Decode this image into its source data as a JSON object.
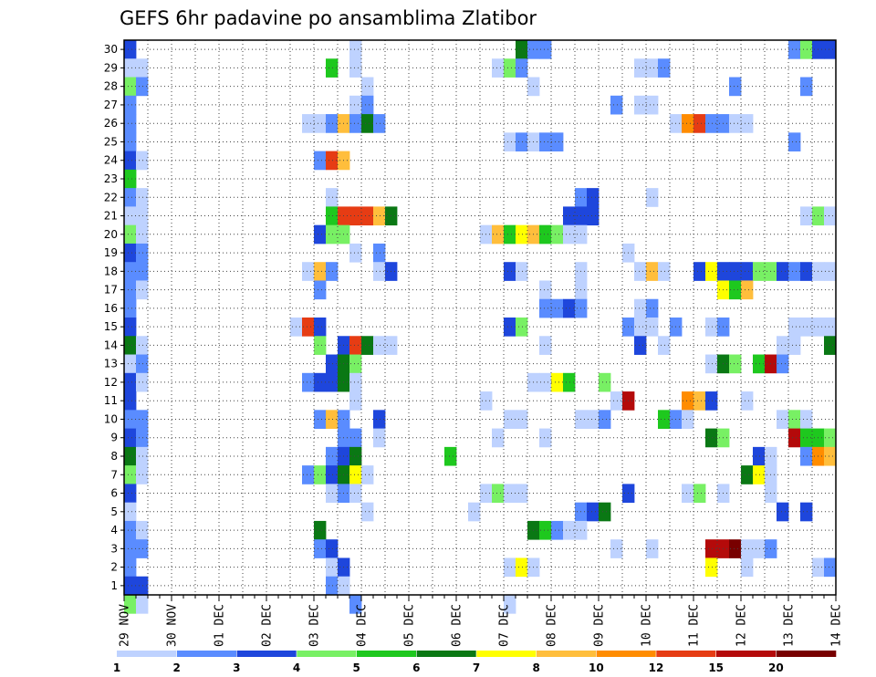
{
  "chart_data": {
    "type": "heatmap",
    "title": "GEFS 6hr padavine po ansamblima Zlatibor",
    "xlabel": "",
    "ylabel": "",
    "x_tick_labels": [
      "29 NOV",
      "30 NOV",
      "01 DEC",
      "02 DEC",
      "03 DEC",
      "04 DEC",
      "05 DEC",
      "06 DEC",
      "07 DEC",
      "08 DEC",
      "09 DEC",
      "10 DEC",
      "11 DEC",
      "12 DEC",
      "13 DEC",
      "14 DEC"
    ],
    "y_tick_labels": [
      "1",
      "2",
      "3",
      "4",
      "5",
      "6",
      "7",
      "8",
      "9",
      "10",
      "11",
      "12",
      "13",
      "14",
      "15",
      "16",
      "17",
      "18",
      "19",
      "20",
      "21",
      "22",
      "23",
      "24",
      "25",
      "26",
      "27",
      "28",
      "29",
      "30"
    ],
    "xlim_days": [
      0,
      15
    ],
    "ylim": [
      0.5,
      30.5
    ],
    "step_hours": 6,
    "grid": "dotted",
    "colorbar": {
      "bounds": [
        "1",
        "2",
        "3",
        "4",
        "5",
        "6",
        "7",
        "8",
        "10",
        "12",
        "15",
        "20"
      ],
      "colors": [
        "#bed2ff",
        "#5a8cff",
        "#1e46dc",
        "#78f064",
        "#1ec81e",
        "#0a7814",
        "#ffff00",
        "#ffbe3c",
        "#ff8c00",
        "#e63c14",
        "#b40a0a",
        "#780000"
      ]
    },
    "colorbar_labels": [
      {
        "text": "1",
        "pos": 0
      },
      {
        "text": "2",
        "pos": 1
      },
      {
        "text": "3",
        "pos": 2
      },
      {
        "text": "4",
        "pos": 3
      },
      {
        "text": "5",
        "pos": 4
      },
      {
        "text": "6",
        "pos": 5
      },
      {
        "text": "7",
        "pos": 6
      },
      {
        "text": "8",
        "pos": 7
      },
      {
        "text": "10",
        "pos": 8
      },
      {
        "text": "12",
        "pos": 9
      },
      {
        "text": "15",
        "pos": 10
      },
      {
        "text": "20",
        "pos": 11
      }
    ],
    "cells": [
      [
        30,
        0.0,
        3
      ],
      [
        30,
        4.75,
        1
      ],
      [
        30,
        8.25,
        6
      ],
      [
        30,
        8.5,
        2
      ],
      [
        30,
        8.75,
        2
      ],
      [
        30,
        14.0,
        2
      ],
      [
        30,
        14.25,
        4
      ],
      [
        30,
        14.5,
        3
      ],
      [
        30,
        14.75,
        3
      ],
      [
        29,
        0.0,
        1
      ],
      [
        29,
        0.25,
        1
      ],
      [
        29,
        4.25,
        5
      ],
      [
        29,
        4.75,
        1
      ],
      [
        29,
        7.75,
        1
      ],
      [
        29,
        8.0,
        4
      ],
      [
        29,
        8.25,
        2
      ],
      [
        29,
        10.75,
        1
      ],
      [
        29,
        11.0,
        1
      ],
      [
        29,
        11.25,
        2
      ],
      [
        28,
        0.0,
        4
      ],
      [
        28,
        0.25,
        2
      ],
      [
        28,
        5.0,
        1
      ],
      [
        28,
        8.5,
        1
      ],
      [
        28,
        12.75,
        2
      ],
      [
        28,
        14.25,
        2
      ],
      [
        27,
        0.0,
        2
      ],
      [
        27,
        4.75,
        1
      ],
      [
        27,
        5.0,
        2
      ],
      [
        27,
        10.25,
        2
      ],
      [
        27,
        10.75,
        1
      ],
      [
        27,
        11.0,
        1
      ],
      [
        26,
        0.0,
        2
      ],
      [
        26,
        3.75,
        1
      ],
      [
        26,
        4.0,
        1
      ],
      [
        26,
        4.25,
        2
      ],
      [
        26,
        4.5,
        8
      ],
      [
        26,
        4.75,
        2
      ],
      [
        26,
        5.0,
        6
      ],
      [
        26,
        5.25,
        2
      ],
      [
        26,
        11.5,
        1
      ],
      [
        26,
        11.75,
        9
      ],
      [
        26,
        12.0,
        10
      ],
      [
        26,
        12.25,
        2
      ],
      [
        26,
        12.5,
        2
      ],
      [
        26,
        12.75,
        1
      ],
      [
        26,
        13.0,
        1
      ],
      [
        25,
        0.0,
        2
      ],
      [
        25,
        8.0,
        1
      ],
      [
        25,
        8.25,
        2
      ],
      [
        25,
        8.5,
        1
      ],
      [
        25,
        8.75,
        2
      ],
      [
        25,
        9.0,
        2
      ],
      [
        25,
        14.0,
        2
      ],
      [
        24,
        0.0,
        3
      ],
      [
        24,
        0.25,
        1
      ],
      [
        24,
        4.0,
        2
      ],
      [
        24,
        4.25,
        10
      ],
      [
        24,
        4.5,
        8
      ],
      [
        23,
        0.0,
        5
      ],
      [
        22,
        0.0,
        2
      ],
      [
        22,
        0.25,
        1
      ],
      [
        22,
        4.25,
        1
      ],
      [
        22,
        9.5,
        2
      ],
      [
        22,
        9.75,
        3
      ],
      [
        22,
        11.0,
        1
      ],
      [
        21,
        0.0,
        1
      ],
      [
        21,
        0.25,
        1
      ],
      [
        21,
        4.25,
        5
      ],
      [
        21,
        4.5,
        10
      ],
      [
        21,
        4.75,
        10
      ],
      [
        21,
        5.0,
        10
      ],
      [
        21,
        5.25,
        8
      ],
      [
        21,
        5.5,
        6
      ],
      [
        21,
        9.25,
        3
      ],
      [
        21,
        9.5,
        3
      ],
      [
        21,
        9.75,
        3
      ],
      [
        21,
        14.25,
        1
      ],
      [
        21,
        14.5,
        4
      ],
      [
        21,
        14.75,
        1
      ],
      [
        20,
        0.0,
        4
      ],
      [
        20,
        0.25,
        1
      ],
      [
        20,
        4.0,
        3
      ],
      [
        20,
        4.25,
        4
      ],
      [
        20,
        4.5,
        4
      ],
      [
        20,
        7.5,
        1
      ],
      [
        20,
        7.75,
        8
      ],
      [
        20,
        8.0,
        5
      ],
      [
        20,
        8.25,
        7
      ],
      [
        20,
        8.5,
        8
      ],
      [
        20,
        8.75,
        5
      ],
      [
        20,
        9.0,
        4
      ],
      [
        20,
        9.25,
        1
      ],
      [
        20,
        9.5,
        1
      ],
      [
        19,
        0.0,
        3
      ],
      [
        19,
        0.25,
        2
      ],
      [
        19,
        4.75,
        1
      ],
      [
        19,
        5.25,
        2
      ],
      [
        19,
        10.5,
        1
      ],
      [
        18,
        0.0,
        2
      ],
      [
        18,
        0.25,
        2
      ],
      [
        18,
        3.75,
        1
      ],
      [
        18,
        4.0,
        8
      ],
      [
        18,
        4.25,
        2
      ],
      [
        18,
        5.25,
        1
      ],
      [
        18,
        5.5,
        3
      ],
      [
        18,
        8.0,
        3
      ],
      [
        18,
        8.25,
        1
      ],
      [
        18,
        9.5,
        1
      ],
      [
        18,
        10.75,
        1
      ],
      [
        18,
        11.0,
        8
      ],
      [
        18,
        11.25,
        1
      ],
      [
        18,
        12.0,
        3
      ],
      [
        18,
        12.25,
        7
      ],
      [
        18,
        12.5,
        3
      ],
      [
        18,
        12.75,
        3
      ],
      [
        18,
        13.0,
        3
      ],
      [
        18,
        13.25,
        4
      ],
      [
        18,
        13.5,
        4
      ],
      [
        18,
        13.75,
        3
      ],
      [
        18,
        14.0,
        2
      ],
      [
        18,
        14.25,
        3
      ],
      [
        18,
        14.5,
        1
      ],
      [
        18,
        14.75,
        1
      ],
      [
        17,
        0.0,
        2
      ],
      [
        17,
        0.25,
        1
      ],
      [
        17,
        4.0,
        2
      ],
      [
        17,
        8.75,
        1
      ],
      [
        17,
        9.5,
        1
      ],
      [
        17,
        12.5,
        7
      ],
      [
        17,
        12.75,
        5
      ],
      [
        17,
        13.0,
        8
      ],
      [
        16,
        0.0,
        2
      ],
      [
        16,
        8.75,
        2
      ],
      [
        16,
        9.0,
        2
      ],
      [
        16,
        9.25,
        3
      ],
      [
        16,
        9.5,
        2
      ],
      [
        16,
        10.75,
        1
      ],
      [
        16,
        11.0,
        2
      ],
      [
        15,
        0.0,
        3
      ],
      [
        15,
        3.5,
        1
      ],
      [
        15,
        3.75,
        10
      ],
      [
        15,
        4.0,
        3
      ],
      [
        15,
        8.0,
        3
      ],
      [
        15,
        8.25,
        4
      ],
      [
        15,
        10.5,
        2
      ],
      [
        15,
        10.75,
        1
      ],
      [
        15,
        11.0,
        1
      ],
      [
        15,
        11.5,
        2
      ],
      [
        15,
        12.25,
        1
      ],
      [
        15,
        12.5,
        2
      ],
      [
        15,
        14.0,
        1
      ],
      [
        15,
        14.25,
        1
      ],
      [
        15,
        14.5,
        1
      ],
      [
        15,
        14.75,
        1
      ],
      [
        14,
        0.0,
        6
      ],
      [
        14,
        0.25,
        1
      ],
      [
        14,
        4.0,
        4
      ],
      [
        14,
        4.5,
        3
      ],
      [
        14,
        4.75,
        10
      ],
      [
        14,
        5.0,
        6
      ],
      [
        14,
        5.25,
        1
      ],
      [
        14,
        5.5,
        1
      ],
      [
        14,
        8.75,
        1
      ],
      [
        14,
        10.75,
        3
      ],
      [
        14,
        11.25,
        1
      ],
      [
        14,
        13.75,
        1
      ],
      [
        14,
        14.0,
        1
      ],
      [
        14,
        14.75,
        6
      ],
      [
        13,
        0.0,
        1
      ],
      [
        13,
        0.25,
        2
      ],
      [
        13,
        4.25,
        3
      ],
      [
        13,
        4.5,
        6
      ],
      [
        13,
        4.75,
        4
      ],
      [
        13,
        12.25,
        1
      ],
      [
        13,
        12.5,
        6
      ],
      [
        13,
        12.75,
        4
      ],
      [
        13,
        13.25,
        5
      ],
      [
        13,
        13.5,
        11
      ],
      [
        13,
        13.75,
        2
      ],
      [
        12,
        0.0,
        3
      ],
      [
        12,
        0.25,
        1
      ],
      [
        12,
        3.75,
        2
      ],
      [
        12,
        4.0,
        3
      ],
      [
        12,
        4.25,
        3
      ],
      [
        12,
        4.5,
        6
      ],
      [
        12,
        4.75,
        1
      ],
      [
        12,
        8.5,
        1
      ],
      [
        12,
        8.75,
        1
      ],
      [
        12,
        9.0,
        7
      ],
      [
        12,
        9.25,
        5
      ],
      [
        12,
        10.0,
        4
      ],
      [
        11,
        0.0,
        3
      ],
      [
        11,
        4.75,
        1
      ],
      [
        11,
        7.5,
        1
      ],
      [
        11,
        10.25,
        1
      ],
      [
        11,
        10.5,
        11
      ],
      [
        11,
        11.75,
        9
      ],
      [
        11,
        12.0,
        8
      ],
      [
        11,
        12.25,
        3
      ],
      [
        11,
        13.0,
        1
      ],
      [
        10,
        0.0,
        2
      ],
      [
        10,
        0.25,
        2
      ],
      [
        10,
        4.0,
        2
      ],
      [
        10,
        4.25,
        8
      ],
      [
        10,
        4.5,
        2
      ],
      [
        10,
        5.25,
        3
      ],
      [
        10,
        8.0,
        1
      ],
      [
        10,
        8.25,
        1
      ],
      [
        10,
        9.5,
        1
      ],
      [
        10,
        9.75,
        1
      ],
      [
        10,
        10.0,
        2
      ],
      [
        10,
        11.25,
        5
      ],
      [
        10,
        11.5,
        2
      ],
      [
        10,
        11.75,
        1
      ],
      [
        10,
        13.75,
        1
      ],
      [
        10,
        14.0,
        4
      ],
      [
        10,
        14.25,
        1
      ],
      [
        9,
        0.0,
        3
      ],
      [
        9,
        0.25,
        2
      ],
      [
        9,
        4.5,
        2
      ],
      [
        9,
        4.75,
        2
      ],
      [
        9,
        5.25,
        1
      ],
      [
        9,
        7.75,
        1
      ],
      [
        9,
        8.75,
        1
      ],
      [
        9,
        12.25,
        6
      ],
      [
        9,
        12.5,
        4
      ],
      [
        9,
        14.0,
        11
      ],
      [
        9,
        14.25,
        5
      ],
      [
        9,
        14.5,
        5
      ],
      [
        9,
        14.75,
        4
      ],
      [
        8,
        0.0,
        6
      ],
      [
        8,
        0.25,
        1
      ],
      [
        8,
        4.25,
        2
      ],
      [
        8,
        4.5,
        3
      ],
      [
        8,
        4.75,
        6
      ],
      [
        8,
        6.75,
        5
      ],
      [
        8,
        13.25,
        3
      ],
      [
        8,
        13.5,
        1
      ],
      [
        8,
        14.25,
        2
      ],
      [
        8,
        14.5,
        9
      ],
      [
        8,
        14.75,
        8
      ],
      [
        7,
        0.0,
        4
      ],
      [
        7,
        0.25,
        1
      ],
      [
        7,
        3.75,
        2
      ],
      [
        7,
        4.0,
        4
      ],
      [
        7,
        4.25,
        3
      ],
      [
        7,
        4.5,
        6
      ],
      [
        7,
        4.75,
        7
      ],
      [
        7,
        5.0,
        1
      ],
      [
        7,
        13.0,
        6
      ],
      [
        7,
        13.25,
        7
      ],
      [
        7,
        13.5,
        1
      ],
      [
        6,
        0.0,
        3
      ],
      [
        6,
        4.25,
        1
      ],
      [
        6,
        4.5,
        2
      ],
      [
        6,
        4.75,
        1
      ],
      [
        6,
        7.5,
        1
      ],
      [
        6,
        7.75,
        4
      ],
      [
        6,
        8.0,
        1
      ],
      [
        6,
        8.25,
        1
      ],
      [
        6,
        10.5,
        3
      ],
      [
        6,
        11.75,
        1
      ],
      [
        6,
        12.0,
        4
      ],
      [
        6,
        12.5,
        1
      ],
      [
        6,
        13.5,
        1
      ],
      [
        5,
        0.0,
        1
      ],
      [
        5,
        5.0,
        1
      ],
      [
        5,
        7.25,
        1
      ],
      [
        5,
        9.5,
        2
      ],
      [
        5,
        9.75,
        3
      ],
      [
        5,
        10.0,
        6
      ],
      [
        5,
        13.75,
        3
      ],
      [
        5,
        14.25,
        3
      ],
      [
        4,
        0.0,
        2
      ],
      [
        4,
        0.25,
        1
      ],
      [
        4,
        4.0,
        6
      ],
      [
        4,
        8.5,
        6
      ],
      [
        4,
        8.75,
        5
      ],
      [
        4,
        9.0,
        2
      ],
      [
        4,
        9.25,
        1
      ],
      [
        4,
        9.5,
        1
      ],
      [
        3,
        0.0,
        2
      ],
      [
        3,
        0.25,
        2
      ],
      [
        3,
        4.0,
        2
      ],
      [
        3,
        4.25,
        3
      ],
      [
        3,
        10.25,
        1
      ],
      [
        3,
        11.0,
        1
      ],
      [
        3,
        12.25,
        11
      ],
      [
        3,
        12.5,
        11
      ],
      [
        3,
        12.75,
        12
      ],
      [
        3,
        13.0,
        1
      ],
      [
        3,
        13.25,
        1
      ],
      [
        3,
        13.5,
        2
      ],
      [
        2,
        0.0,
        2
      ],
      [
        2,
        4.25,
        1
      ],
      [
        2,
        4.5,
        3
      ],
      [
        2,
        8.0,
        1
      ],
      [
        2,
        8.25,
        7
      ],
      [
        2,
        8.5,
        1
      ],
      [
        2,
        12.25,
        7
      ],
      [
        2,
        13.0,
        1
      ],
      [
        2,
        14.5,
        1
      ],
      [
        2,
        14.75,
        2
      ],
      [
        1,
        0.0,
        3
      ],
      [
        1,
        0.25,
        3
      ],
      [
        1,
        4.25,
        2
      ],
      [
        1,
        4.5,
        1
      ],
      [
        0,
        0.0,
        4
      ],
      [
        0,
        0.25,
        1
      ],
      [
        0,
        4.75,
        2
      ],
      [
        0,
        8.0,
        1
      ]
    ]
  }
}
